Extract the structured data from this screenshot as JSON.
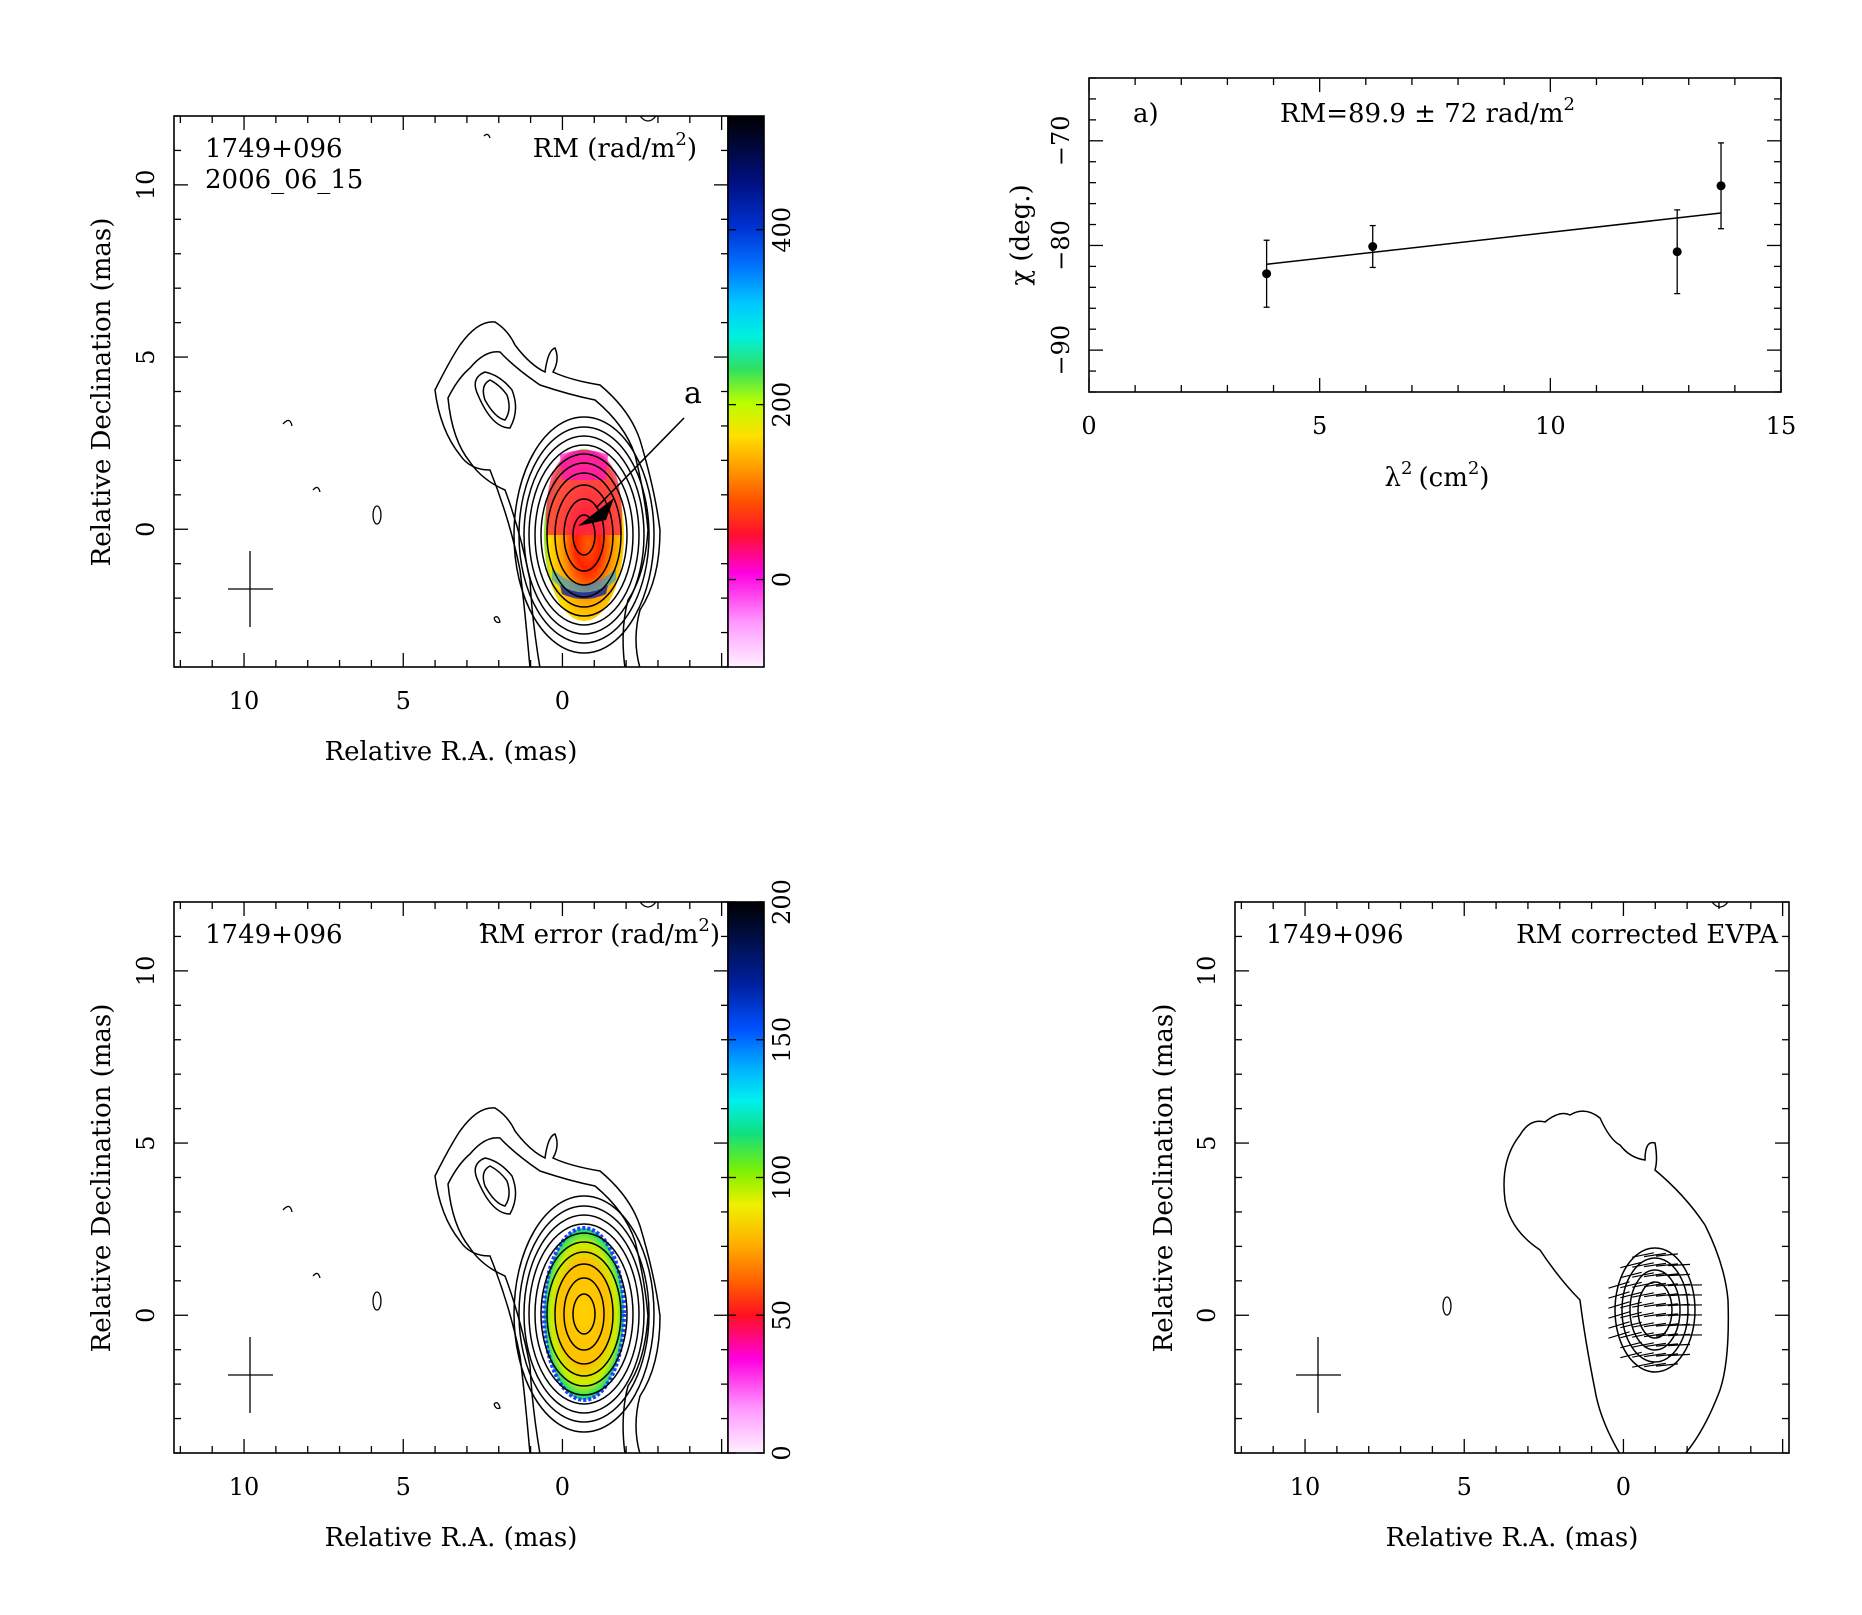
{
  "figure": {
    "source_name": "1749+096",
    "epoch": "2006_06_15"
  },
  "panels": {
    "rm_map": {
      "source": "1749+096",
      "date": "2006_06_15",
      "title_prefix": "RM (rad/m",
      "title_exp": "2",
      "title_suffix": ")",
      "xlabel": "Relative R.A. (mas)",
      "ylabel": "Relative Declination (mas)",
      "x_ticks": [
        "10",
        "5",
        "0"
      ],
      "y_ticks": [
        "0",
        "5",
        "10"
      ],
      "colorbar_ticks": [
        "0",
        "200",
        "400"
      ],
      "colorbar_range": [
        -100,
        530
      ],
      "annotation": "a"
    },
    "rm_fit": {
      "label": "a)",
      "rm_text": "RM=89.9 ± 72 rad/m",
      "rm_exp": "2",
      "xlabel": "λ",
      "xlabel_exp": "2",
      "xlabel_unit": "(cm",
      "xlabel_unit_exp": "2",
      "xlabel_close": ")",
      "ylabel": "χ (deg.)",
      "x_ticks": [
        "0",
        "5",
        "10",
        "15"
      ],
      "y_ticks": [
        "−90",
        "−80",
        "−70"
      ]
    },
    "rm_error_map": {
      "source": "1749+096",
      "title_prefix": "RM error (rad/m",
      "title_exp": "2",
      "title_suffix": ")",
      "xlabel": "Relative R.A. (mas)",
      "ylabel": "Relative Declination (mas)",
      "x_ticks": [
        "10",
        "5",
        "0"
      ],
      "y_ticks": [
        "0",
        "5",
        "10"
      ],
      "colorbar_ticks": [
        "0",
        "50",
        "100",
        "150",
        "200"
      ],
      "colorbar_range": [
        0,
        200
      ]
    },
    "evpa_map": {
      "source": "1749+096",
      "title": "RM corrected EVPA",
      "xlabel": "Relative R.A. (mas)",
      "ylabel": "Relative Declination (mas)",
      "x_ticks": [
        "10",
        "5",
        "0"
      ],
      "y_ticks": [
        "0",
        "5",
        "10"
      ]
    }
  },
  "chart_data": [
    {
      "type": "scatter",
      "title": "RM=89.9 ± 72 rad/m2",
      "xlabel": "λ2 (cm2)",
      "ylabel": "χ (deg.)",
      "xlim": [
        0,
        15
      ],
      "ylim": [
        -94,
        -64
      ],
      "points": [
        {
          "x": 3.85,
          "y": -82.7,
          "err": 3.2
        },
        {
          "x": 6.15,
          "y": -80.1,
          "err": 2.0
        },
        {
          "x": 12.75,
          "y": -80.6,
          "err": 4.0
        },
        {
          "x": 13.7,
          "y": -74.3,
          "err": 4.1
        }
      ],
      "fit_line": {
        "x": [
          3.85,
          13.7
        ],
        "y": [
          -81.8,
          -76.9
        ]
      }
    },
    {
      "type": "heatmap",
      "title": "RM (rad/m2)",
      "xlabel": "Relative R.A. (mas)",
      "ylabel": "Relative Declination (mas)",
      "xlim": [
        12.2,
        -5.2
      ],
      "ylim": [
        -4.0,
        12.0
      ],
      "colorbar": {
        "min": -100,
        "max": 530,
        "ticks": [
          0,
          200,
          400
        ]
      }
    },
    {
      "type": "heatmap",
      "title": "RM error (rad/m2)",
      "xlabel": "Relative R.A. (mas)",
      "ylabel": "Relative Declination (mas)",
      "xlim": [
        12.2,
        -5.2
      ],
      "ylim": [
        -4.0,
        12.0
      ],
      "colorbar": {
        "min": 0,
        "max": 200,
        "ticks": [
          0,
          50,
          100,
          150,
          200
        ]
      }
    }
  ]
}
